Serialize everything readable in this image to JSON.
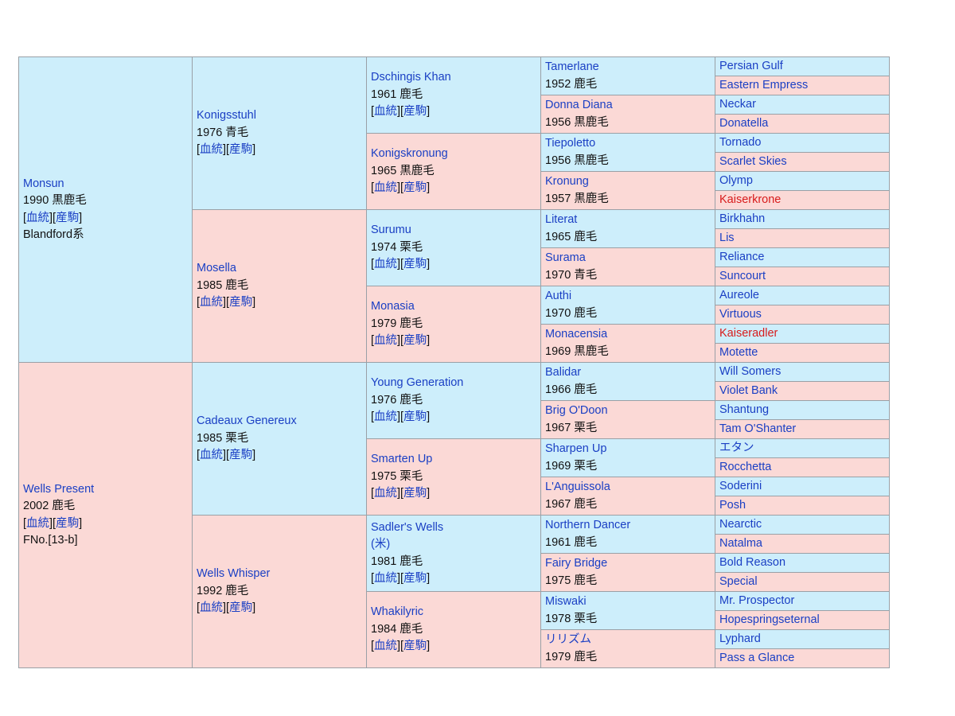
{
  "col1": [
    {
      "name": "Monsun",
      "line2": "1990 黒鹿毛",
      "l1": "血統",
      "l2": "産駒",
      "extra": "Blandford系",
      "sex": "male"
    },
    {
      "name": "Wells Present",
      "line2": "2002 鹿毛",
      "l1": "血統",
      "l2": "産駒",
      "extra": "FNo.[13-b]",
      "sex": "female"
    }
  ],
  "col2": [
    {
      "name": "Konigsstuhl",
      "line2": "1976 青毛",
      "l1": "血統",
      "l2": "産駒",
      "sex": "male"
    },
    {
      "name": "Mosella",
      "line2": "1985 鹿毛",
      "l1": "血統",
      "l2": "産駒",
      "sex": "female"
    },
    {
      "name": "Cadeaux Genereux",
      "line2": "1985 栗毛",
      "l1": "血統",
      "l2": "産駒",
      "sex": "male"
    },
    {
      "name": "Wells Whisper",
      "line2": "1992 鹿毛",
      "l1": "血統",
      "l2": "産駒",
      "sex": "female"
    }
  ],
  "col3": [
    {
      "name": "Dschingis Khan",
      "line2": "1961 鹿毛",
      "l1": "血統",
      "l2": "産駒",
      "sex": "male"
    },
    {
      "name": "Konigskronung",
      "line2": "1965 黒鹿毛",
      "l1": "血統",
      "l2": "産駒",
      "sex": "female"
    },
    {
      "name": "Surumu",
      "line2": "1974 栗毛",
      "l1": "血統",
      "l2": "産駒",
      "sex": "male"
    },
    {
      "name": "Monasia",
      "line2": "1979 鹿毛",
      "l1": "血統",
      "l2": "産駒",
      "sex": "female"
    },
    {
      "name": "Young Generation",
      "line2": "1976 鹿毛",
      "l1": "血統",
      "l2": "産駒",
      "sex": "male"
    },
    {
      "name": "Smarten Up",
      "line2": "1975 栗毛",
      "l1": "血統",
      "l2": "産駒",
      "sex": "female"
    },
    {
      "name": "Sadler's Wells",
      "suffix": "(米)",
      "line2": "1981 鹿毛",
      "l1": "血統",
      "l2": "産駒",
      "sex": "male"
    },
    {
      "name": "Whakilyric",
      "line2": "1984 鹿毛",
      "l1": "血統",
      "l2": "産駒",
      "sex": "female"
    }
  ],
  "col4": [
    {
      "name": "Tamerlane",
      "line2": "1952 鹿毛",
      "sex": "male"
    },
    {
      "name": "Donna Diana",
      "line2": "1956 黒鹿毛",
      "sex": "female"
    },
    {
      "name": "Tiepoletto",
      "line2": "1956 黒鹿毛",
      "sex": "male"
    },
    {
      "name": "Kronung",
      "line2": "1957 黒鹿毛",
      "sex": "female"
    },
    {
      "name": "Literat",
      "line2": "1965 鹿毛",
      "sex": "male"
    },
    {
      "name": "Surama",
      "line2": "1970 青毛",
      "sex": "female"
    },
    {
      "name": "Authi",
      "line2": "1970 鹿毛",
      "sex": "male"
    },
    {
      "name": "Monacensia",
      "line2": "1969 黒鹿毛",
      "sex": "female"
    },
    {
      "name": "Balidar",
      "line2": "1966 鹿毛",
      "sex": "male"
    },
    {
      "name": "Brig O'Doon",
      "line2": "1967 栗毛",
      "sex": "female"
    },
    {
      "name": "Sharpen Up",
      "line2": "1969 栗毛",
      "sex": "male"
    },
    {
      "name": "L'Anguissola",
      "line2": "1967 鹿毛",
      "sex": "female"
    },
    {
      "name": "Northern Dancer",
      "line2": "1961 鹿毛",
      "sex": "male"
    },
    {
      "name": "Fairy Bridge",
      "line2": "1975 鹿毛",
      "sex": "female"
    },
    {
      "name": "Miswaki",
      "line2": "1978 栗毛",
      "sex": "male"
    },
    {
      "name": "リリズム",
      "line2": "1979 鹿毛",
      "sex": "female"
    }
  ],
  "col5": [
    {
      "name": "Persian Gulf",
      "sex": "male"
    },
    {
      "name": "Eastern Empress",
      "sex": "female"
    },
    {
      "name": "Neckar",
      "sex": "male"
    },
    {
      "name": "Donatella",
      "sex": "female"
    },
    {
      "name": "Tornado",
      "sex": "male"
    },
    {
      "name": "Scarlet Skies",
      "sex": "female"
    },
    {
      "name": "Olymp",
      "sex": "male"
    },
    {
      "name": "Kaiserkrone",
      "sex": "female",
      "red": true
    },
    {
      "name": "Birkhahn",
      "sex": "male"
    },
    {
      "name": "Lis",
      "sex": "female"
    },
    {
      "name": "Reliance",
      "sex": "male"
    },
    {
      "name": "Suncourt",
      "sex": "female"
    },
    {
      "name": "Aureole",
      "sex": "male"
    },
    {
      "name": "Virtuous",
      "sex": "female"
    },
    {
      "name": "Kaiseradler",
      "sex": "male",
      "red": true
    },
    {
      "name": "Motette",
      "sex": "female"
    },
    {
      "name": "Will Somers",
      "sex": "male"
    },
    {
      "name": "Violet Bank",
      "sex": "female"
    },
    {
      "name": "Shantung",
      "sex": "male"
    },
    {
      "name": "Tam O'Shanter",
      "sex": "female"
    },
    {
      "name": "エタン",
      "sex": "male"
    },
    {
      "name": "Rocchetta",
      "sex": "female"
    },
    {
      "name": "Soderini",
      "sex": "male"
    },
    {
      "name": "Posh",
      "sex": "female"
    },
    {
      "name": "Nearctic",
      "sex": "male"
    },
    {
      "name": "Natalma",
      "sex": "female"
    },
    {
      "name": "Bold Reason",
      "sex": "male"
    },
    {
      "name": "Special",
      "sex": "female"
    },
    {
      "name": "Mr. Prospector",
      "sex": "male"
    },
    {
      "name": "Hopespringseternal",
      "sex": "female"
    },
    {
      "name": "Lyphard",
      "sex": "male"
    },
    {
      "name": "Pass a Glance",
      "sex": "female"
    }
  ]
}
